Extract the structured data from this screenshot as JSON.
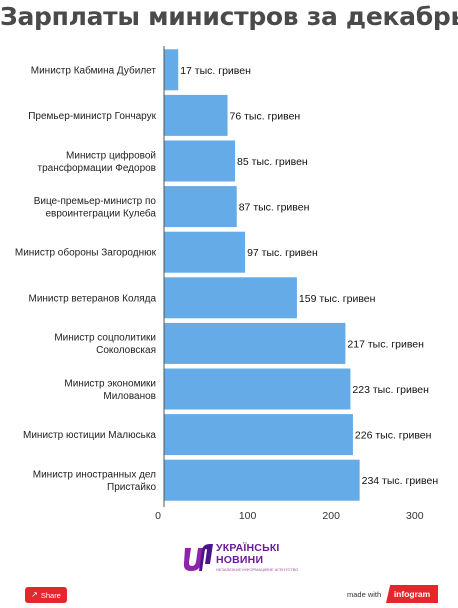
{
  "chart_data": {
    "type": "bar",
    "orientation": "horizontal",
    "title": "Зарплаты министров за декабрь",
    "categories": [
      "Министр Кабмина Дубилет",
      "Премьер-министр Гончарук",
      "Министр цифровой трансформации Федоров",
      "Вице-премьер-министр по евроинтеграции Кулеба",
      "Министр обороны Загороднюк",
      "Министр ветеранов Коляда",
      "Министр соцполитики Соколовская",
      "Министр экономики Милованов",
      "Министр юстиции Малюська",
      "Министр иностранных дел Пристайко"
    ],
    "category_lines": [
      [
        "Министр Кабмина Дубилет"
      ],
      [
        "Премьер-министр Гончарук"
      ],
      [
        "Министр цифровой",
        "трансформации Федоров"
      ],
      [
        "Вице-премьер-министр по",
        "евроинтеграции Кулеба"
      ],
      [
        "Министр обороны Загороднюк"
      ],
      [
        "Министр ветеранов Коляда"
      ],
      [
        "Министр соцполитики",
        "Соколовская"
      ],
      [
        "Министр экономики",
        "Милованов"
      ],
      [
        "Министр юстиции Малюська"
      ],
      [
        "Министр иностранных дел",
        "Пристайко"
      ]
    ],
    "values": [
      17,
      76,
      85,
      87,
      97,
      159,
      217,
      223,
      226,
      234
    ],
    "data_labels": [
      "17 тыс. гривен",
      "76 тыс. гривен",
      "85 тыс. гривен",
      "87 тыс. гривен",
      "97 тыс. гривен",
      "159 тыс. гривен",
      "217 тыс. гривен",
      "223 тыс. гривен",
      "226 тыс. гривен",
      "234 тыс. гривен"
    ],
    "x_ticks": [
      0,
      100,
      200,
      300
    ],
    "xlim": [
      0,
      300
    ],
    "xlabel": "",
    "ylabel": "",
    "grid": false,
    "bar_color": "#64abe8"
  },
  "logo": {
    "line1": "УКРАЇНСЬКІ",
    "line2": "НОВИНИ",
    "line3": "НЕЗАЛЕЖНЕ ІНФОРМАЦІЙНЕ АГЕНТСТВО"
  },
  "footer": {
    "share_label": "Share",
    "made_with": "made with",
    "brand": "infogram"
  }
}
